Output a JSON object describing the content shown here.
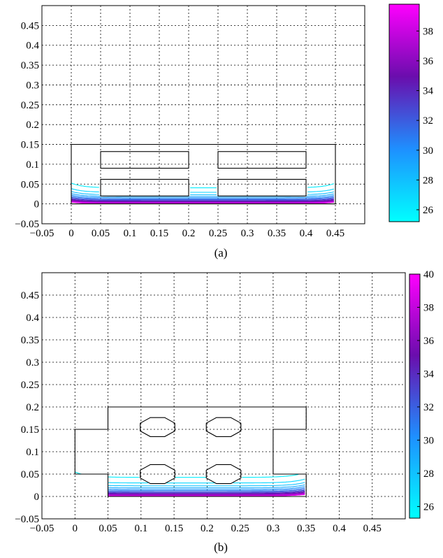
{
  "chart_data": [
    {
      "type": "contour",
      "caption": "(a)",
      "xlim": [
        -0.05,
        0.5
      ],
      "ylim": [
        -0.05,
        0.5
      ],
      "xticks": [
        -0.05,
        0,
        0.05,
        0.1,
        0.15,
        0.2,
        0.25,
        0.3,
        0.35,
        0.4,
        0.45
      ],
      "xtick_labels": [
        "−0.05",
        "0",
        "0.05",
        "0.1",
        "0.15",
        "0.2",
        "0.25",
        "0.3",
        "0.35",
        "0.4",
        "0.45"
      ],
      "yticks": [
        -0.05,
        0,
        0.05,
        0.1,
        0.15,
        0.2,
        0.25,
        0.3,
        0.35,
        0.4,
        0.45
      ],
      "ytick_labels": [
        "−0.05",
        "0",
        "0.05",
        "0.1",
        "0.15",
        "0.2",
        "0.25",
        "0.3",
        "0.35",
        "0.4",
        "0.45"
      ],
      "grid": true,
      "colorbar": {
        "min": 25.2,
        "max": 39.8,
        "ticks": [
          26,
          28,
          30,
          32,
          34,
          36,
          38
        ],
        "tick_labels": [
          "26",
          "28",
          "30",
          "32",
          "34",
          "36",
          "38"
        ],
        "colormap": [
          "#00ffff",
          "#1e90ff",
          "#6a0dad",
          "#ff00ff"
        ]
      },
      "domain_outline": [
        [
          0,
          0
        ],
        [
          0.45,
          0
        ],
        [
          0.45,
          0.15
        ],
        [
          0,
          0.15
        ]
      ],
      "obstacles": [
        {
          "shape": "rect",
          "x": [
            0.05,
            0.2
          ],
          "y": [
            0.02,
            0.062
          ]
        },
        {
          "shape": "rect",
          "x": [
            0.05,
            0.2
          ],
          "y": [
            0.09,
            0.132
          ]
        },
        {
          "shape": "rect",
          "x": [
            0.25,
            0.4
          ],
          "y": [
            0.02,
            0.062
          ]
        },
        {
          "shape": "rect",
          "x": [
            0.25,
            0.4
          ],
          "y": [
            0.09,
            0.132
          ]
        }
      ],
      "contour_levels": [
        26,
        27,
        28,
        29,
        30,
        31,
        32,
        33,
        34,
        35,
        36,
        37,
        38,
        39
      ]
    },
    {
      "type": "contour",
      "caption": "(b)",
      "xlim": [
        -0.05,
        0.5
      ],
      "ylim": [
        -0.05,
        0.5
      ],
      "xticks": [
        -0.05,
        0,
        0.05,
        0.1,
        0.15,
        0.2,
        0.25,
        0.3,
        0.35,
        0.4,
        0.45
      ],
      "xtick_labels": [
        "−0.05",
        "0",
        "0.05",
        "0.1",
        "0.15",
        "0.2",
        "0.25",
        "0.3",
        "0.35",
        "0.4",
        "0.45"
      ],
      "yticks": [
        -0.05,
        0,
        0.05,
        0.1,
        0.15,
        0.2,
        0.25,
        0.3,
        0.35,
        0.4,
        0.45
      ],
      "ytick_labels": [
        "−0.05",
        "0",
        "0.05",
        "0.1",
        "0.15",
        "0.2",
        "0.25",
        "0.3",
        "0.35",
        "0.4",
        "0.45"
      ],
      "grid": true,
      "colorbar": {
        "min": 25.3,
        "max": 40,
        "ticks": [
          26,
          28,
          30,
          32,
          34,
          36,
          38,
          40
        ],
        "tick_labels": [
          "26",
          "28",
          "30",
          "32",
          "34",
          "36",
          "38",
          "40"
        ],
        "colormap": [
          "#00ffff",
          "#1e90ff",
          "#6a0dad",
          "#ff00ff"
        ]
      },
      "domain_outline": [
        [
          0.05,
          0
        ],
        [
          0.35,
          0
        ],
        [
          0.35,
          0.05
        ],
        [
          0.3,
          0.05
        ],
        [
          0.3,
          0.15
        ],
        [
          0.35,
          0.15
        ],
        [
          0.35,
          0.2
        ],
        [
          0.05,
          0.2
        ],
        [
          0.05,
          0.15
        ],
        [
          0,
          0.15
        ],
        [
          0,
          0.05
        ],
        [
          0.05,
          0.05
        ]
      ],
      "obstacles": [
        {
          "shape": "octagon",
          "cx": 0.125,
          "cy": 0.155,
          "r": 0.027
        },
        {
          "shape": "octagon",
          "cx": 0.225,
          "cy": 0.155,
          "r": 0.027
        },
        {
          "shape": "octagon",
          "cx": 0.125,
          "cy": 0.05,
          "r": 0.027
        },
        {
          "shape": "octagon",
          "cx": 0.225,
          "cy": 0.05,
          "r": 0.027
        }
      ],
      "contour_levels": [
        26,
        27,
        28,
        29,
        30,
        31,
        32,
        33,
        34,
        35,
        36,
        37,
        38,
        39
      ]
    }
  ]
}
